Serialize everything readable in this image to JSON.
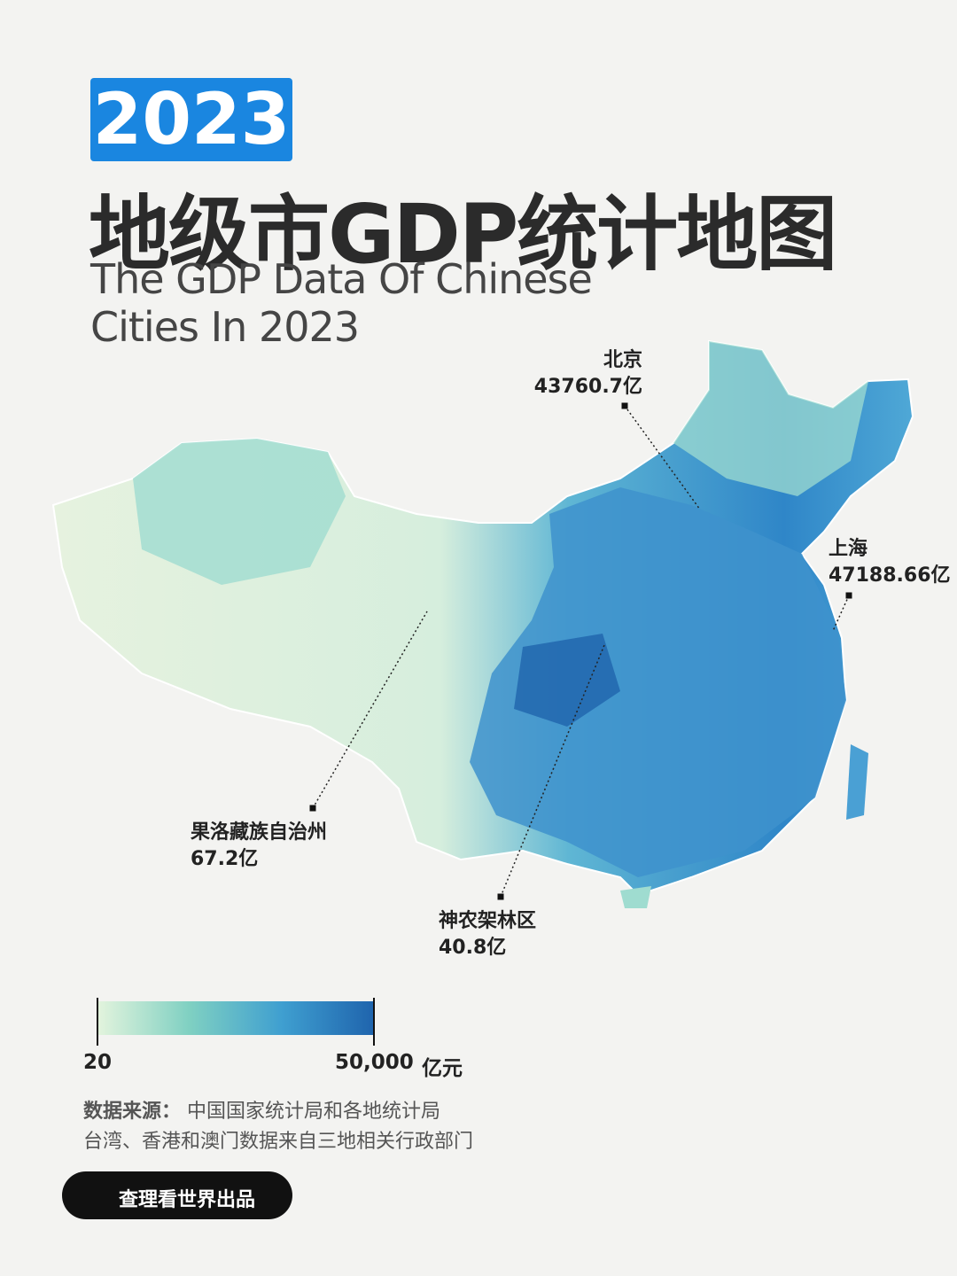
{
  "header": {
    "year": "2023",
    "title": "地级市GDP统计地图",
    "subtitle_lines": [
      "The GDP Data Of Chinese",
      "Cities In 2023"
    ]
  },
  "annotations": [
    {
      "name": "北京",
      "value": "43760.7亿"
    },
    {
      "name": "上海",
      "value": "47188.66亿"
    },
    {
      "name": "果洛藏族自治州",
      "value": "67.2亿"
    },
    {
      "name": "神农架林区",
      "value": "40.8亿"
    }
  ],
  "legend": {
    "min": "20",
    "max": "50,000",
    "unit": "亿元",
    "colors": [
      "#e3f4dd",
      "#7fd0c2",
      "#3f9fd0",
      "#1f64ad"
    ]
  },
  "source": {
    "label": "数据来源：",
    "text": "中国国家统计局和各地统计局",
    "note": "台湾、香港和澳门数据来自三地相关行政部门"
  },
  "footer": {
    "brand": "查理看世界出品"
  }
}
